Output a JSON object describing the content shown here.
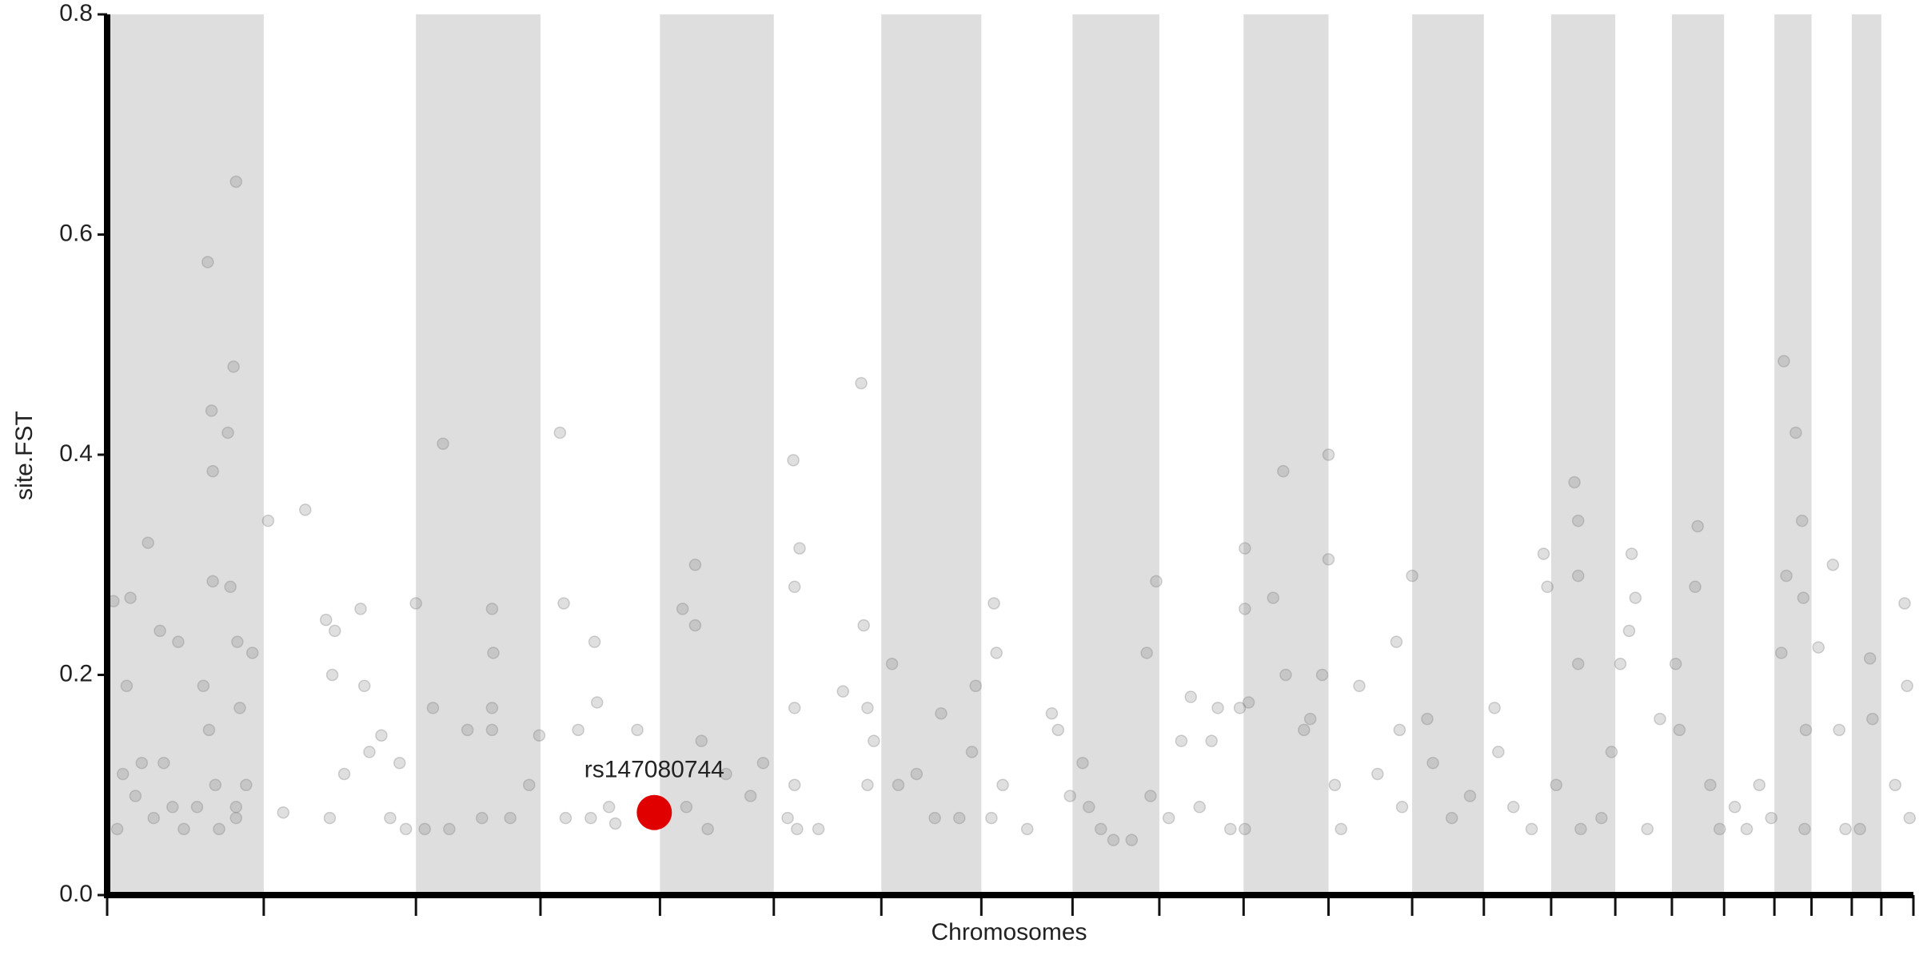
{
  "chart_data": {
    "type": "scatter",
    "xlabel": "Chromosomes",
    "ylabel": "site.FST",
    "xlim": [
      0,
      2872
    ],
    "xticks": [
      0,
      249,
      491,
      689,
      879,
      1060,
      1231,
      1390,
      1535,
      1673,
      1807,
      1942,
      2075,
      2189,
      2296,
      2398,
      2488,
      2571,
      2651,
      2710,
      2774,
      2821,
      2872
    ],
    "shade_alternate": true,
    "shade_color": "#dedede",
    "ylim": [
      0,
      0.8
    ],
    "yticks": [
      {
        "value": 0,
        "label": "0.0"
      },
      0.2,
      0.4,
      0.6,
      0.8
    ],
    "series": [
      {
        "color": "#808080",
        "x": [
          10,
          16,
          25,
          31,
          37,
          45,
          55,
          65,
          74,
          84,
          90,
          104,
          113,
          153,
          160,
          166,
          168,
          168,
          172,
          178,
          192,
          196,
          201,
          205,
          207,
          205,
          205,
          211,
          221,
          231,
          162,
          143,
          122,
          256,
          280,
          315,
          348,
          354,
          358,
          362,
          377,
          403,
          409,
          417,
          436,
          450,
          465,
          475,
          491,
          505,
          518,
          534,
          544,
          573,
          596,
          612,
          614,
          612,
          612,
          641,
          671,
          687,
          720,
          726,
          729,
          749,
          769,
          775,
          779,
          798,
          808,
          843,
          915,
          935,
          935,
          945,
          921,
          955,
          984,
          1023,
          1043,
          1082,
          1091,
          1093,
          1093,
          1093,
          1097,
          1101,
          1131,
          1170,
          1199,
          1203,
          1209,
          1209,
          1219,
          1248,
          1258,
          1287,
          1316,
          1326,
          1355,
          1375,
          1381,
          1410,
          1414,
          1406,
          1424,
          1463,
          1502,
          1512,
          1531,
          1551,
          1561,
          1580,
          1600,
          1629,
          1653,
          1659,
          1668,
          1688,
          1708,
          1723,
          1737,
          1756,
          1766,
          1786,
          1801,
          1809,
          1809,
          1809,
          1815,
          1854,
          1870,
          1874,
          1903,
          1913,
          1932,
          1942,
          1942,
          1952,
          1962,
          1991,
          2020,
          2050,
          2055,
          2059,
          2075,
          2099,
          2108,
          2138,
          2167,
          2206,
          2212,
          2236,
          2265,
          2284,
          2290,
          2304,
          2333,
          2339,
          2339,
          2339,
          2343,
          2376,
          2392,
          2406,
          2420,
          2424,
          2430,
          2449,
          2469,
          2494,
          2500,
          2525,
          2529,
          2549,
          2564,
          2588,
          2607,
          2627,
          2646,
          2662,
          2666,
          2670,
          2685,
          2695,
          2697,
          2699,
          2701,
          2721,
          2744,
          2754,
          2764,
          2787,
          2803,
          2807,
          2843,
          2858,
          2862,
          2866
        ],
        "values": [
          0.267,
          0.06,
          0.11,
          0.19,
          0.27,
          0.09,
          0.12,
          0.32,
          0.07,
          0.24,
          0.12,
          0.08,
          0.23,
          0.19,
          0.575,
          0.44,
          0.385,
          0.285,
          0.1,
          0.06,
          0.42,
          0.28,
          0.48,
          0.648,
          0.23,
          0.08,
          0.07,
          0.17,
          0.1,
          0.22,
          0.15,
          0.08,
          0.06,
          0.34,
          0.075,
          0.35,
          0.25,
          0.07,
          0.2,
          0.24,
          0.11,
          0.26,
          0.19,
          0.13,
          0.145,
          0.07,
          0.12,
          0.06,
          0.265,
          0.06,
          0.17,
          0.41,
          0.06,
          0.15,
          0.07,
          0.26,
          0.22,
          0.17,
          0.15,
          0.07,
          0.1,
          0.145,
          0.42,
          0.265,
          0.07,
          0.15,
          0.07,
          0.23,
          0.175,
          0.08,
          0.065,
          0.15,
          0.26,
          0.3,
          0.245,
          0.14,
          0.08,
          0.06,
          0.11,
          0.09,
          0.12,
          0.07,
          0.395,
          0.28,
          0.17,
          0.1,
          0.06,
          0.315,
          0.06,
          0.185,
          0.465,
          0.245,
          0.17,
          0.1,
          0.14,
          0.21,
          0.1,
          0.11,
          0.07,
          0.165,
          0.07,
          0.13,
          0.19,
          0.265,
          0.22,
          0.07,
          0.1,
          0.06,
          0.165,
          0.15,
          0.09,
          0.12,
          0.08,
          0.06,
          0.05,
          0.05,
          0.22,
          0.09,
          0.285,
          0.07,
          0.14,
          0.18,
          0.08,
          0.14,
          0.17,
          0.06,
          0.17,
          0.315,
          0.26,
          0.06,
          0.175,
          0.27,
          0.385,
          0.2,
          0.15,
          0.16,
          0.2,
          0.4,
          0.305,
          0.1,
          0.06,
          0.19,
          0.11,
          0.23,
          0.15,
          0.08,
          0.29,
          0.16,
          0.12,
          0.07,
          0.09,
          0.17,
          0.13,
          0.08,
          0.06,
          0.31,
          0.28,
          0.1,
          0.375,
          0.34,
          0.29,
          0.21,
          0.06,
          0.07,
          0.13,
          0.21,
          0.24,
          0.31,
          0.27,
          0.06,
          0.16,
          0.21,
          0.15,
          0.28,
          0.335,
          0.1,
          0.06,
          0.08,
          0.06,
          0.1,
          0.07,
          0.22,
          0.485,
          0.29,
          0.42,
          0.34,
          0.27,
          0.06,
          0.15,
          0.225,
          0.3,
          0.15,
          0.06,
          0.06,
          0.215,
          0.16,
          0.1,
          0.265,
          0.19,
          0.07
        ]
      }
    ],
    "highlight": {
      "label": "rs147080744",
      "x": 870,
      "y": 0.075,
      "color": "#e00000"
    }
  }
}
